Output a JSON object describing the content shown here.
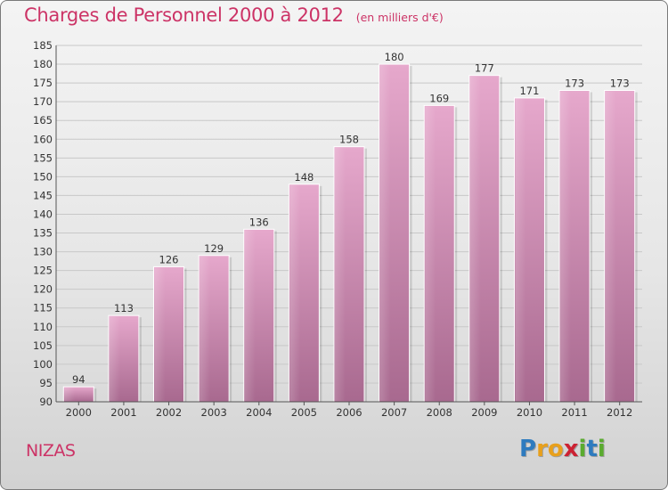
{
  "title": "Charges de Personnel 2000 à 2012",
  "subtitle": "(en milliers d'€)",
  "commune": "NIZAS",
  "logo": {
    "letters": [
      "P",
      "r",
      "o",
      "x",
      "i",
      "t",
      "i"
    ],
    "colors": [
      "#2e7bbf",
      "#e8a01c",
      "#e8a01c",
      "#cc2233",
      "#5aab2f",
      "#2e7bbf",
      "#5aab2f"
    ]
  },
  "colors": {
    "accent": "#cc3366",
    "bar_light": "#e6a8cc",
    "bar_dark": "#a8698f",
    "grid": "#c8c8c8"
  },
  "chart_data": {
    "type": "bar",
    "title": "Charges de Personnel 2000 à 2012",
    "subtitle": "(en milliers d'€)",
    "categories": [
      "2000",
      "2001",
      "2002",
      "2003",
      "2004",
      "2005",
      "2006",
      "2007",
      "2008",
      "2009",
      "2010",
      "2011",
      "2012"
    ],
    "values": [
      94,
      113,
      126,
      129,
      136,
      148,
      158,
      180,
      169,
      177,
      171,
      173,
      173
    ],
    "ylim": [
      90,
      185
    ],
    "yticks": [
      90,
      95,
      100,
      105,
      110,
      115,
      120,
      125,
      130,
      135,
      140,
      145,
      150,
      155,
      160,
      165,
      170,
      175,
      180,
      185
    ],
    "grid": true,
    "legend": "none"
  }
}
